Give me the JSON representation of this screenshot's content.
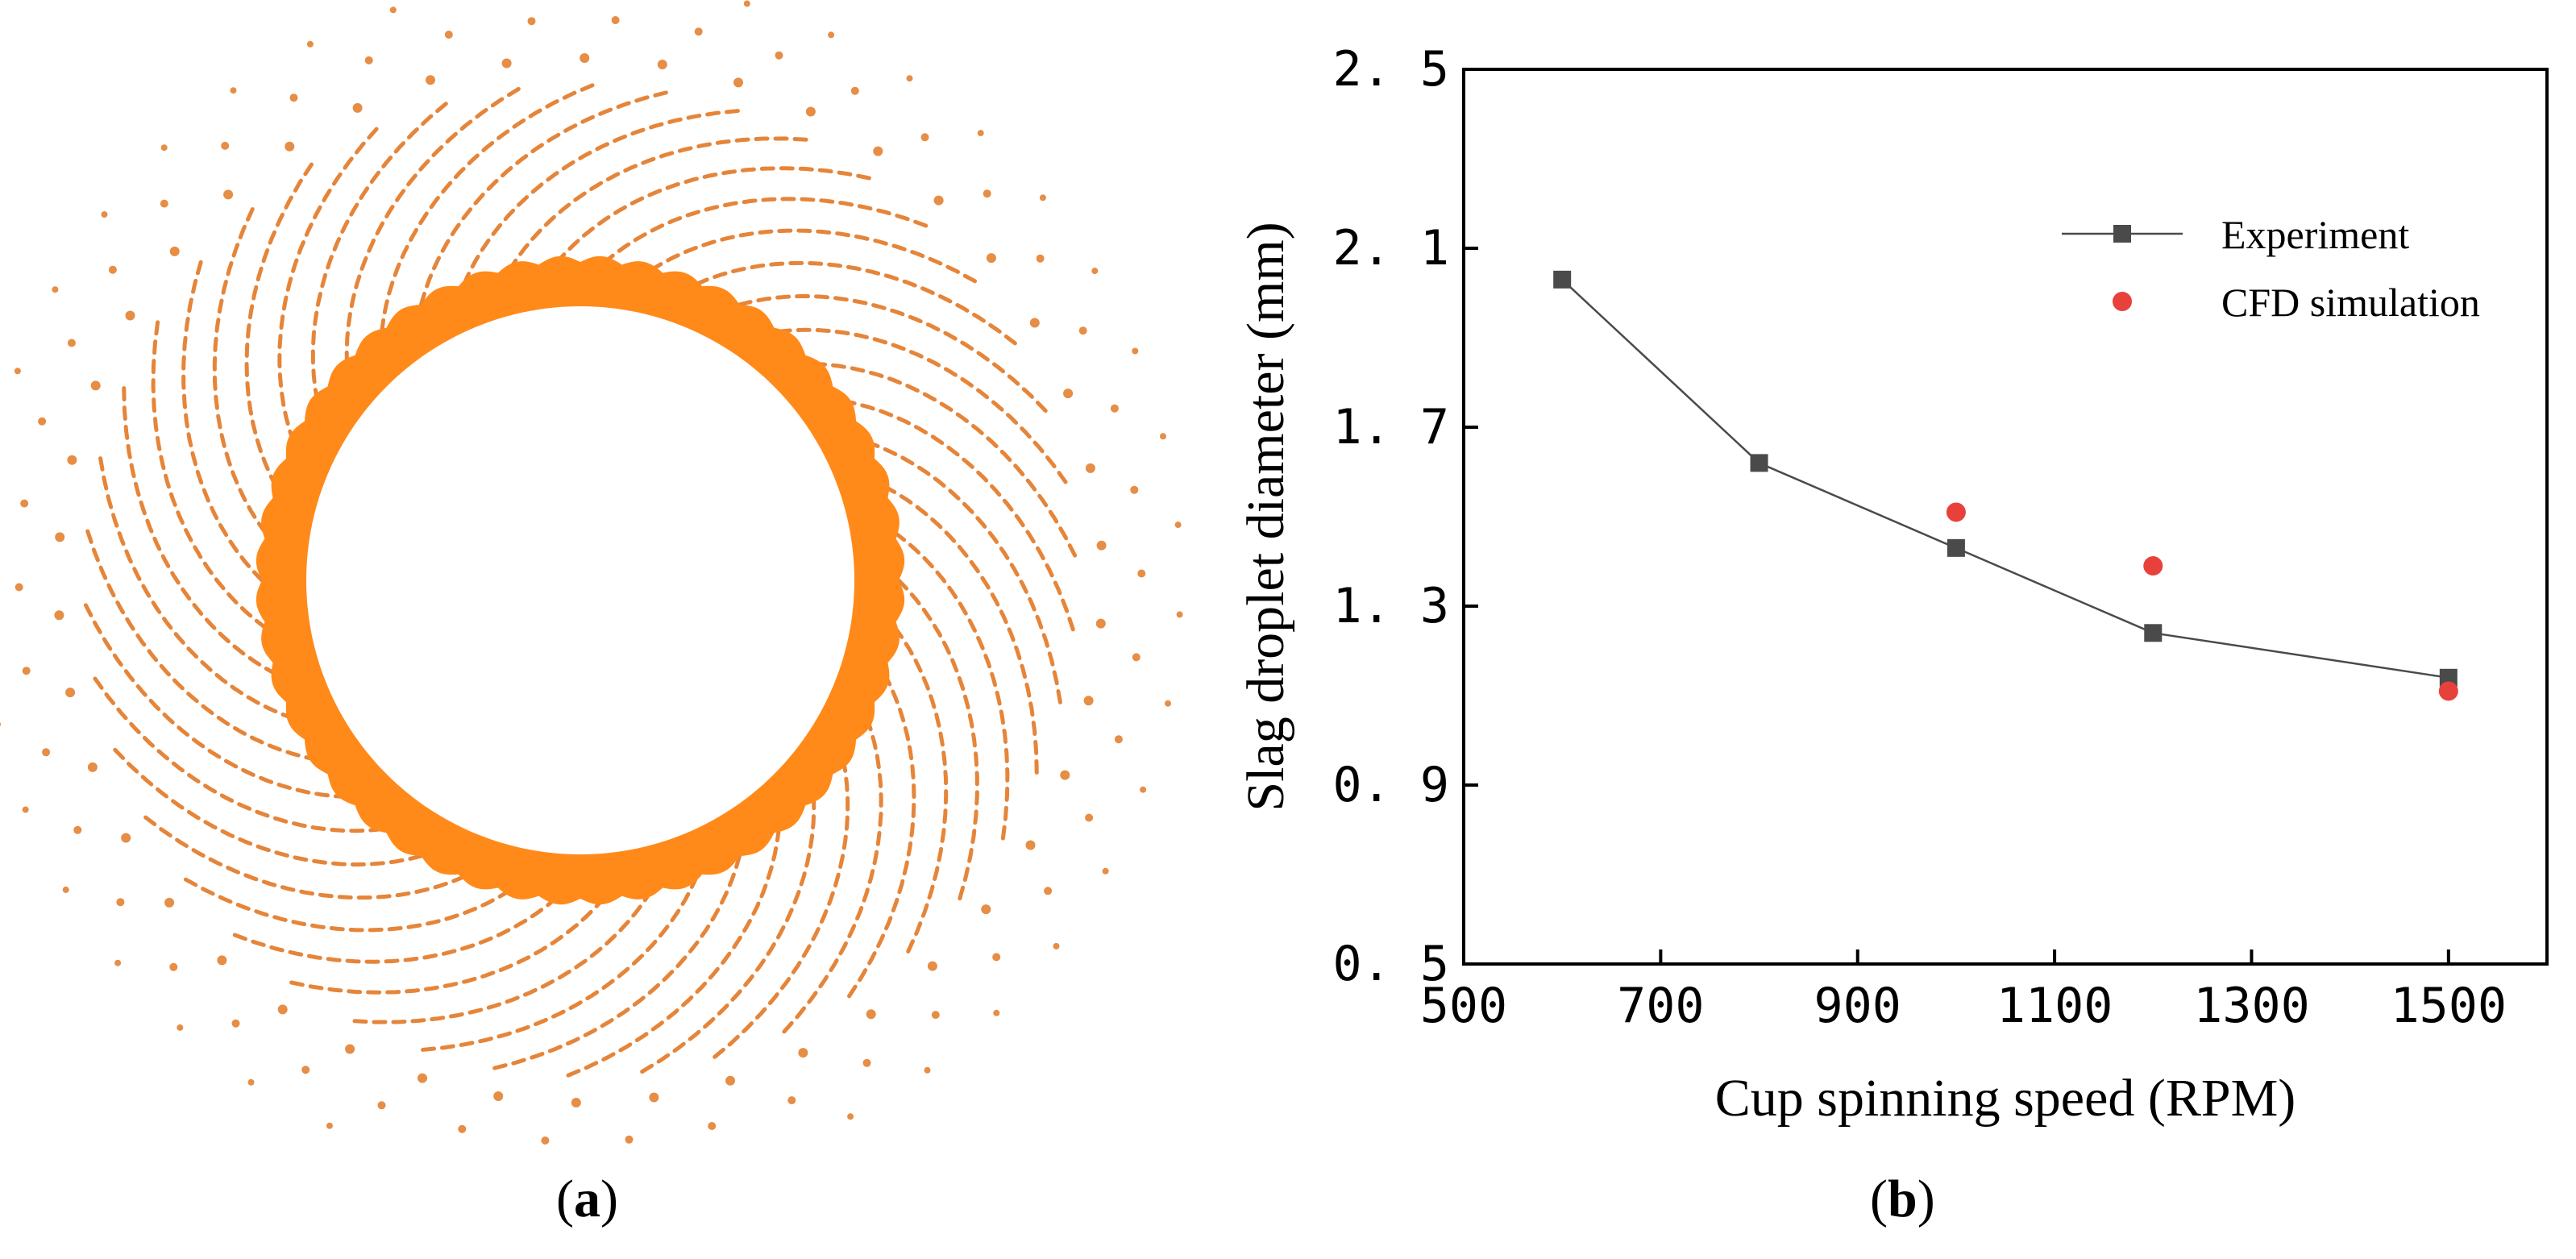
{
  "figure": {
    "panel_a": {
      "caption_open": "(",
      "caption_letter": "a",
      "caption_close": ")",
      "colors": {
        "ring": "#ff8a1a",
        "droplet": "#e07018"
      }
    },
    "panel_b": {
      "caption_open": "(",
      "caption_letter": "b",
      "caption_close": ")"
    }
  },
  "chart_data": {
    "type": "line",
    "title": "",
    "xlabel": "Cup spinning speed (RPM)",
    "ylabel": "Slag droplet diameter (mm)",
    "xlim": [
      500,
      1600
    ],
    "ylim": [
      0.5,
      2.5
    ],
    "xticks": [
      500,
      700,
      900,
      1100,
      1300,
      1500
    ],
    "xtick_labels": [
      "500",
      "700",
      "900",
      "1100",
      "1300",
      "1500"
    ],
    "yticks": [
      0.5,
      0.9,
      1.3,
      1.7,
      2.1,
      2.5
    ],
    "ytick_labels": [
      "0. 5",
      "0. 9",
      "1. 3",
      "1. 7",
      "2. 1",
      "2. 5"
    ],
    "grid": false,
    "legend_position": "top-right",
    "series": [
      {
        "name": "Experiment",
        "marker": "square",
        "line": true,
        "color": "#4a4a4a",
        "x": [
          600,
          800,
          1000,
          1200,
          1500
        ],
        "y": [
          2.03,
          1.62,
          1.43,
          1.24,
          1.14
        ]
      },
      {
        "name": "CFD simulation",
        "marker": "circle",
        "line": false,
        "color": "#e8413c",
        "x": [
          1000,
          1200,
          1500
        ],
        "y": [
          1.51,
          1.39,
          1.11
        ]
      }
    ]
  }
}
